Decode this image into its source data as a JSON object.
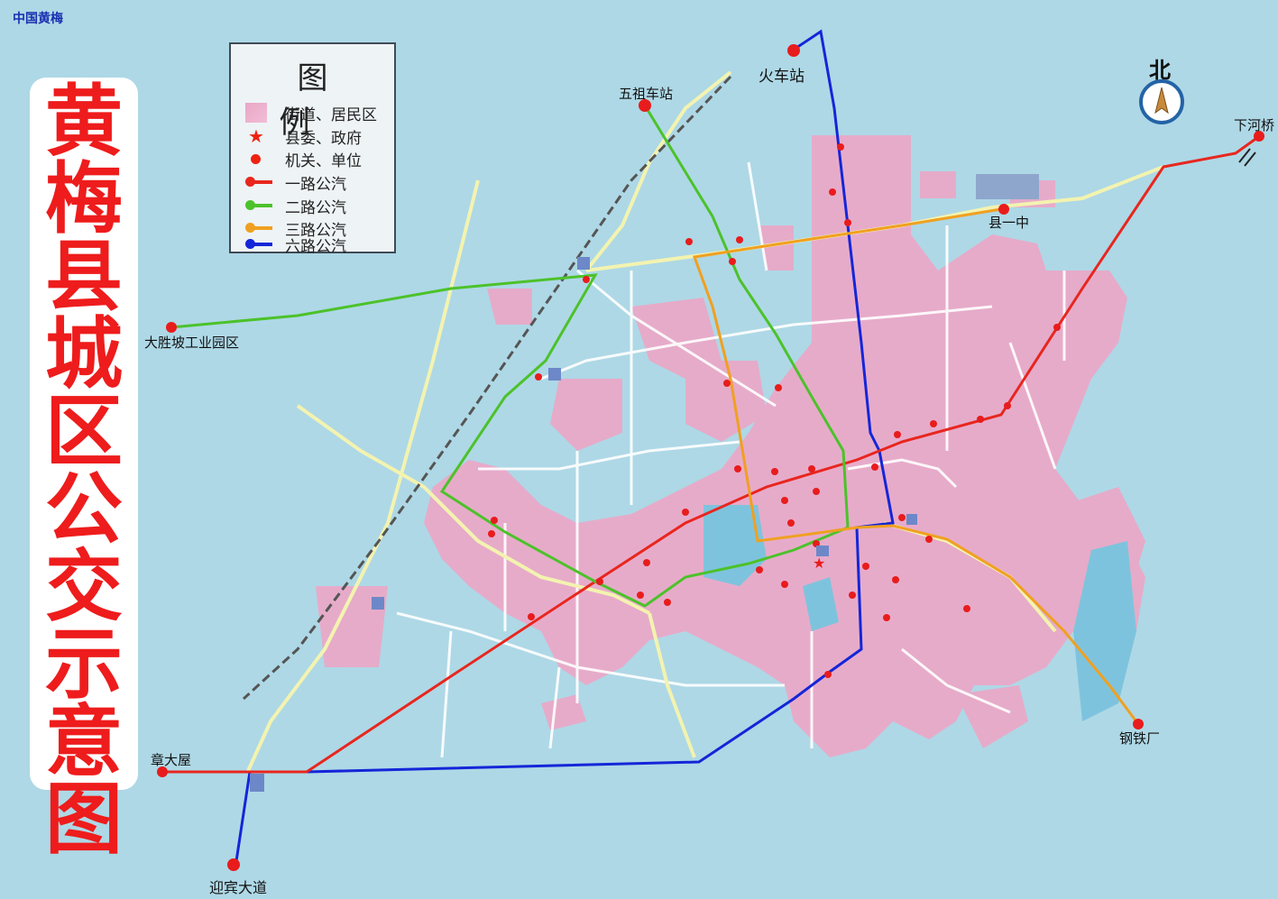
{
  "watermark": "中国黄梅",
  "title_chars": [
    "黄",
    "梅",
    "县",
    "城",
    "区",
    "公",
    "交",
    "示",
    "意",
    "图"
  ],
  "legend": {
    "title": "图例",
    "items": [
      {
        "label": "街道、居民区",
        "symbol": "pink-area"
      },
      {
        "label": "县委、政府",
        "symbol": "red-star"
      },
      {
        "label": "机关、单位",
        "symbol": "red-dot"
      },
      {
        "label": "一路公汽",
        "symbol": "line",
        "color": "#e8261e"
      },
      {
        "label": "二路公汽",
        "symbol": "line",
        "color": "#4cc22a"
      },
      {
        "label": "三路公汽",
        "symbol": "line",
        "color": "#f0a020"
      },
      {
        "label": "六路公汽",
        "symbol": "line",
        "color": "#1426d8"
      }
    ]
  },
  "compass": {
    "label": "北",
    "icon": "north-arrow-icon"
  },
  "places": {
    "railway_station": "火车站",
    "wuzu_station": "五祖车站",
    "xiahe_bridge": "下河桥",
    "county_no1_school": "县一中",
    "dashengpo_park": "大胜坡工业园区",
    "zhangdawu": "章大屋",
    "yingbin_avenue": "迎宾大道",
    "steel_plant": "钢铁厂"
  },
  "colors": {
    "water": "#aed8e6",
    "residential": "#eaa9c8",
    "route1": "#e8261e",
    "route2": "#4cc22a",
    "route3": "#f0a020",
    "route6": "#1426d8",
    "road": "#f3f3c8"
  }
}
